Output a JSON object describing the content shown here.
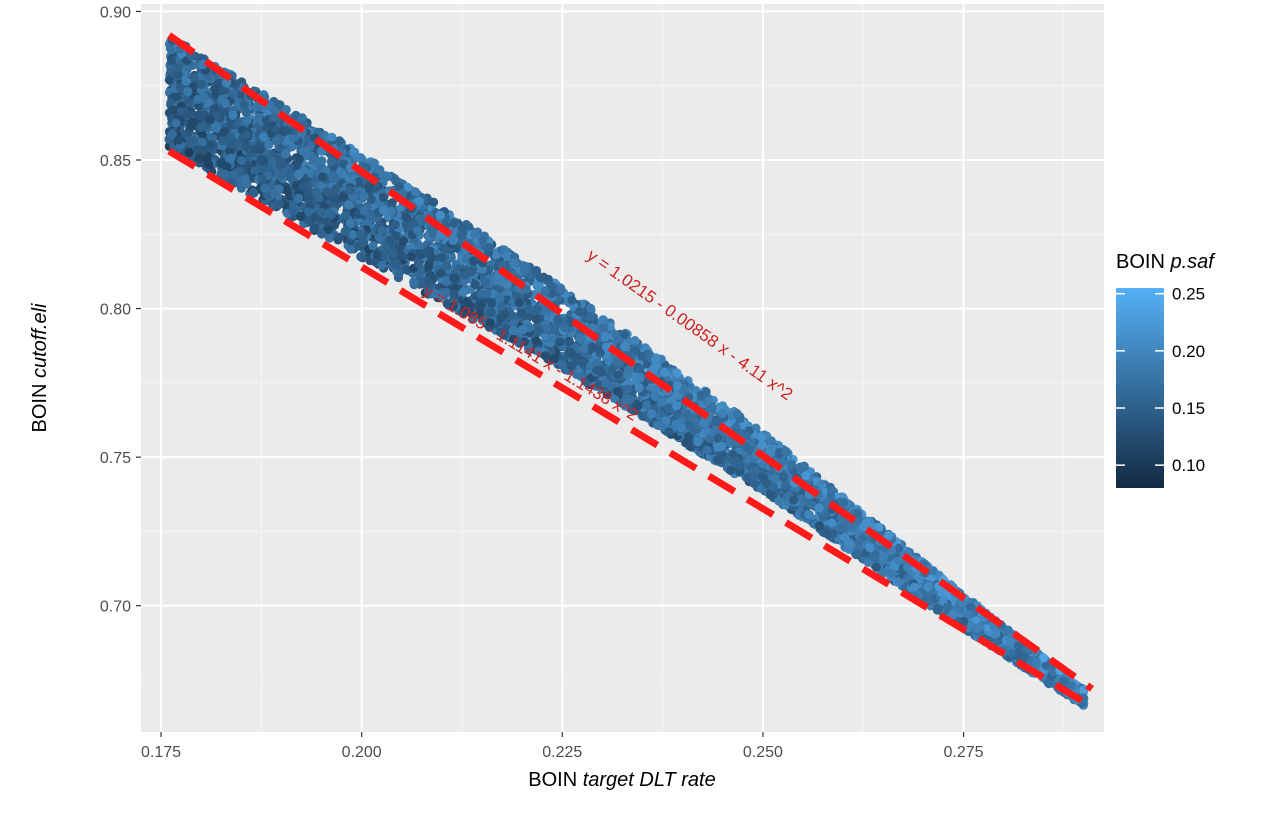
{
  "chart_data": {
    "type": "scatter",
    "title": "",
    "xlabel": {
      "prefix": "BOIN ",
      "italic": "target DLT rate"
    },
    "ylabel": {
      "prefix": "BOIN ",
      "italic": "cutoff.eli"
    },
    "xlim": [
      0.1725,
      0.2925
    ],
    "ylim": [
      0.6575,
      0.9025
    ],
    "x_ticks": [
      "0.175",
      "0.200",
      "0.225",
      "0.250",
      "0.275"
    ],
    "y_ticks": [
      "0.70",
      "0.75",
      "0.80",
      "0.85",
      "0.90"
    ],
    "grid": true,
    "legend": {
      "title": {
        "prefix": "BOIN ",
        "italic": "p.saf"
      },
      "position": "right",
      "type": "colorbar",
      "range": [
        0.08,
        0.255
      ],
      "ticks": [
        "0.10",
        "0.15",
        "0.20",
        "0.25"
      ],
      "color_low": "#132B43",
      "color_high": "#56B1F7"
    },
    "points_description": "dense band of points between the two dashed boundary curves from x≈0.176 to x≈0.290",
    "band_upper_y_at_x": [
      [
        0.176,
        0.893
      ],
      [
        0.2,
        0.853
      ],
      [
        0.225,
        0.808
      ],
      [
        0.25,
        0.759
      ],
      [
        0.275,
        0.704
      ],
      [
        0.29,
        0.672
      ]
    ],
    "band_lower_y_at_x": [
      [
        0.176,
        0.853
      ],
      [
        0.2,
        0.816
      ],
      [
        0.225,
        0.779
      ],
      [
        0.25,
        0.738
      ],
      [
        0.275,
        0.692
      ],
      [
        0.29,
        0.666
      ]
    ],
    "boundary_lines": [
      {
        "name": "upper",
        "x": [
          0.176,
          0.291
        ],
        "y": [
          0.892,
          0.672
        ],
        "color": "#ff1a1a",
        "style": "dashed"
      },
      {
        "name": "lower",
        "x": [
          0.176,
          0.291
        ],
        "y": [
          0.853,
          0.666
        ],
        "color": "#ff1a1a",
        "style": "dashed"
      }
    ],
    "annotations": [
      {
        "text": "y = 1.0215 - 0.00858 x - 4.11 x^2",
        "x": 0.2405,
        "y": 0.793,
        "color": "#cc2222"
      },
      {
        "text": "y = 1.085 - 1.1141 x - 1.1438 x^2",
        "x": 0.2207,
        "y": 0.7835,
        "color": "#cc2222"
      }
    ]
  }
}
